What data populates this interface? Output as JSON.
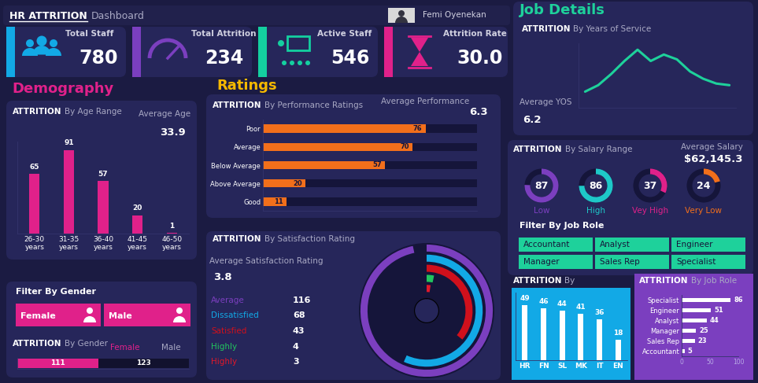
{
  "header": {
    "title": "HR ATTRITION",
    "subtitle": "Dashboard",
    "user": "Femi Oyenekan"
  },
  "kpis": [
    {
      "label": "Total Staff",
      "value": 780
    },
    {
      "label": "Total Attrition",
      "value": 234
    },
    {
      "label": "Active Staff",
      "value": 546
    },
    {
      "label": "Attrition Rate",
      "value": 30.0
    }
  ],
  "sections": {
    "demography": "Demography",
    "ratings": "Ratings",
    "job_details": "Job Details"
  },
  "filters": {
    "gender": {
      "title": "Filter By Gender",
      "options": [
        "Female",
        "Male"
      ]
    },
    "job_role": {
      "title": "Filter By Job Role",
      "options": [
        "Accountant",
        "Analyst",
        "Engineer",
        "Manager",
        "Sales Rep",
        "Specialist"
      ]
    }
  },
  "chart_data": [
    {
      "type": "bar",
      "title": "ATTRITION By Age Range",
      "categories": [
        "26-30 years",
        "31-35 years",
        "36-40 years",
        "41-45 years",
        "46-50 years"
      ],
      "values": [
        65,
        91,
        57,
        20,
        1
      ],
      "color": "#e0218a",
      "ylim": [
        0,
        100
      ],
      "data_labels": true,
      "tick_labels": "x",
      "annotations": [
        {
          "label": "Average Age",
          "value": 33.9
        }
      ]
    },
    {
      "type": "bar",
      "orientation": "horizontal",
      "title": "ATTRITION By Performance Ratings",
      "categories": [
        "Poor",
        "Average",
        "Below Average",
        "Above Average",
        "Good"
      ],
      "values": [
        76,
        70,
        57,
        20,
        11
      ],
      "color": "#f26f1b",
      "xlim": [
        0,
        100
      ],
      "data_labels": true,
      "tick_labels": "y",
      "annotations": [
        {
          "label": "Average Performance",
          "value": 6.3
        }
      ]
    },
    {
      "type": "radial_bar",
      "title": "ATTRITION By Satisfaction Rating",
      "categories": [
        "Average",
        "Dissatisfied",
        "Satisfied",
        "Highly",
        "Highly"
      ],
      "values": [
        116,
        68,
        43,
        4,
        3
      ],
      "colors": [
        "#7b3fbf",
        "#12a9e6",
        "#d0101c",
        "#22c55e",
        "#e0182a"
      ],
      "xlim": [
        0,
        120
      ],
      "legend": "left",
      "tick_labels": false,
      "annotations": [
        {
          "label": "Average Satisfaction Rating",
          "value": 3.8
        }
      ]
    },
    {
      "type": "line",
      "title": "ATTRITION By Years of Service",
      "categories": [
        null,
        null,
        null,
        null,
        null,
        null,
        null,
        null,
        null,
        null,
        null,
        null
      ],
      "values": [
        20,
        28,
        42,
        58,
        72,
        58,
        66,
        60,
        45,
        36,
        30,
        28
      ],
      "color": "#1ed19b",
      "ylim": [
        0,
        80
      ],
      "tick_labels": false,
      "annotations": [
        {
          "label": "Average YOS",
          "value": 6.2
        }
      ]
    },
    {
      "type": "donut",
      "title": "ATTRITION By Salary Range",
      "categories": [
        "Low",
        "High",
        "Vey High",
        "Very Low"
      ],
      "values": [
        87,
        86,
        37,
        24
      ],
      "colors": [
        "#7b3fbf",
        "#1ec8c8",
        "#e0218a",
        "#f26f1b"
      ],
      "xlim": [
        0,
        115
      ],
      "data_labels": true,
      "annotations": [
        {
          "label": "Average Salary",
          "value": 62145.3,
          "value_label": "$62,145.3"
        }
      ]
    },
    {
      "type": "bar",
      "orientation": "horizontal",
      "stacked": true,
      "title": "ATTRITION By Gender",
      "categories": [
        null
      ],
      "series": [
        {
          "name": "Female",
          "color": "#e0218a",
          "values": [
            111
          ]
        },
        {
          "name": "Male",
          "color": "#12122e",
          "values": [
            123
          ]
        }
      ],
      "xlim": [
        0,
        234
      ],
      "data_labels": true,
      "legend": "upper right",
      "tick_labels": false
    },
    {
      "type": "bar",
      "title": "ATTRITION By",
      "categories": [
        "HR",
        "FN",
        "SL",
        "MK",
        "IT",
        "EN"
      ],
      "values": [
        49,
        46,
        44,
        41,
        36,
        18
      ],
      "color": "#ffffff",
      "ylim": [
        0,
        60
      ],
      "data_labels": true,
      "tick_labels": "x"
    },
    {
      "type": "bar",
      "orientation": "horizontal",
      "title": "ATTRITION By Job Role",
      "categories": [
        "Specialist",
        "Engineer",
        "Analyst",
        "Manager",
        "Sales Rep",
        "Accountant"
      ],
      "values": [
        86,
        51,
        44,
        25,
        23,
        5
      ],
      "color": "#ffffff",
      "xlim": [
        0,
        100
      ],
      "xticks": [
        0,
        50,
        100
      ],
      "data_labels": true
    }
  ]
}
